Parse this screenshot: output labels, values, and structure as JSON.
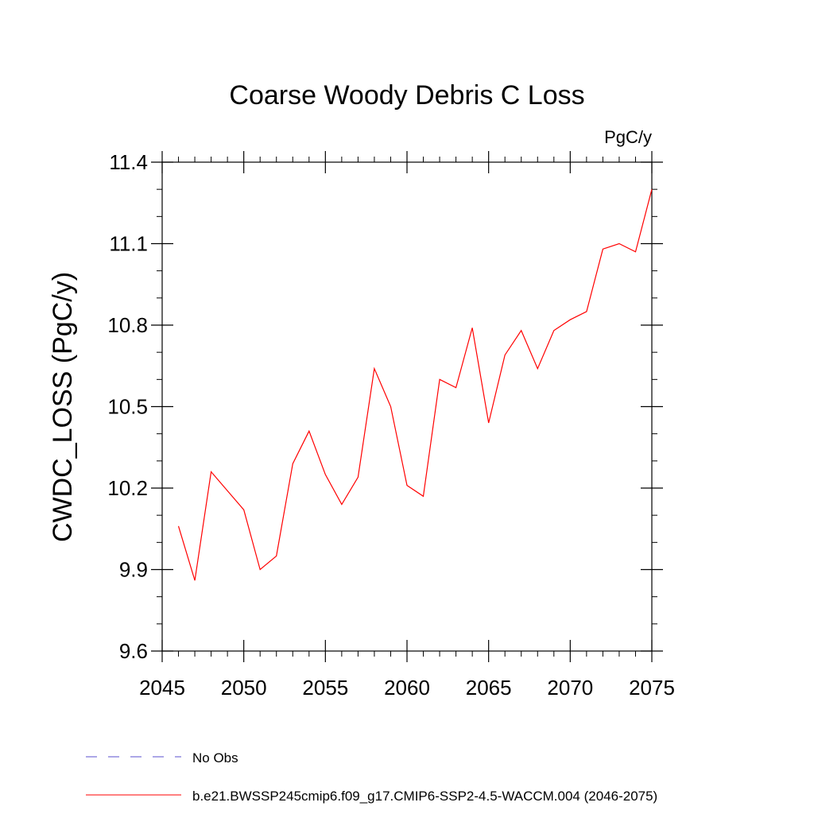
{
  "chart_data": {
    "type": "line",
    "title": "Coarse Woody Debris C Loss",
    "units": "PgC/y",
    "ylabel": "CWDC_LOSS  (PgC/y)",
    "xlabel": "",
    "xlim": [
      2045,
      2075
    ],
    "ylim": [
      9.6,
      11.4
    ],
    "x_ticks": [
      2045,
      2050,
      2055,
      2060,
      2065,
      2070,
      2075
    ],
    "x_tick_labels": [
      "2045",
      "2050",
      "2055",
      "2060",
      "2065",
      "2070",
      "2075"
    ],
    "y_ticks": [
      9.6,
      9.9,
      10.2,
      10.5,
      10.8,
      11.1,
      11.4
    ],
    "y_tick_labels": [
      "9.6",
      "9.9",
      "10.2",
      "10.5",
      "10.8",
      "11.1",
      "11.4"
    ],
    "grid": false,
    "legend_position": "bottom",
    "series": [
      {
        "name": "b.e21.BWSSP245cmip6.f09_g17.CMIP6-SSP2-4.5-WACCM.004 (2046-2075)",
        "color": "#ff0000",
        "style": "solid",
        "x": [
          2046,
          2047,
          2048,
          2049,
          2050,
          2051,
          2052,
          2053,
          2054,
          2055,
          2056,
          2057,
          2058,
          2059,
          2060,
          2061,
          2062,
          2063,
          2064,
          2065,
          2066,
          2067,
          2068,
          2069,
          2070,
          2071,
          2072,
          2073,
          2074,
          2075
        ],
        "y": [
          10.06,
          9.86,
          10.26,
          10.19,
          10.12,
          9.9,
          9.95,
          10.29,
          10.41,
          10.25,
          10.14,
          10.24,
          10.64,
          10.5,
          10.21,
          10.17,
          10.6,
          10.57,
          10.79,
          10.44,
          10.69,
          10.78,
          10.64,
          10.78,
          10.82,
          10.85,
          11.08,
          11.1,
          11.07,
          11.3
        ]
      }
    ],
    "legend": [
      {
        "label": "No Obs",
        "color": "#5a4fcf",
        "style": "dashed"
      },
      {
        "label": "b.e21.BWSSP245cmip6.f09_g17.CMIP6-SSP2-4.5-WACCM.004 (2046-2075)",
        "color": "#ff0000",
        "style": "solid"
      }
    ]
  }
}
